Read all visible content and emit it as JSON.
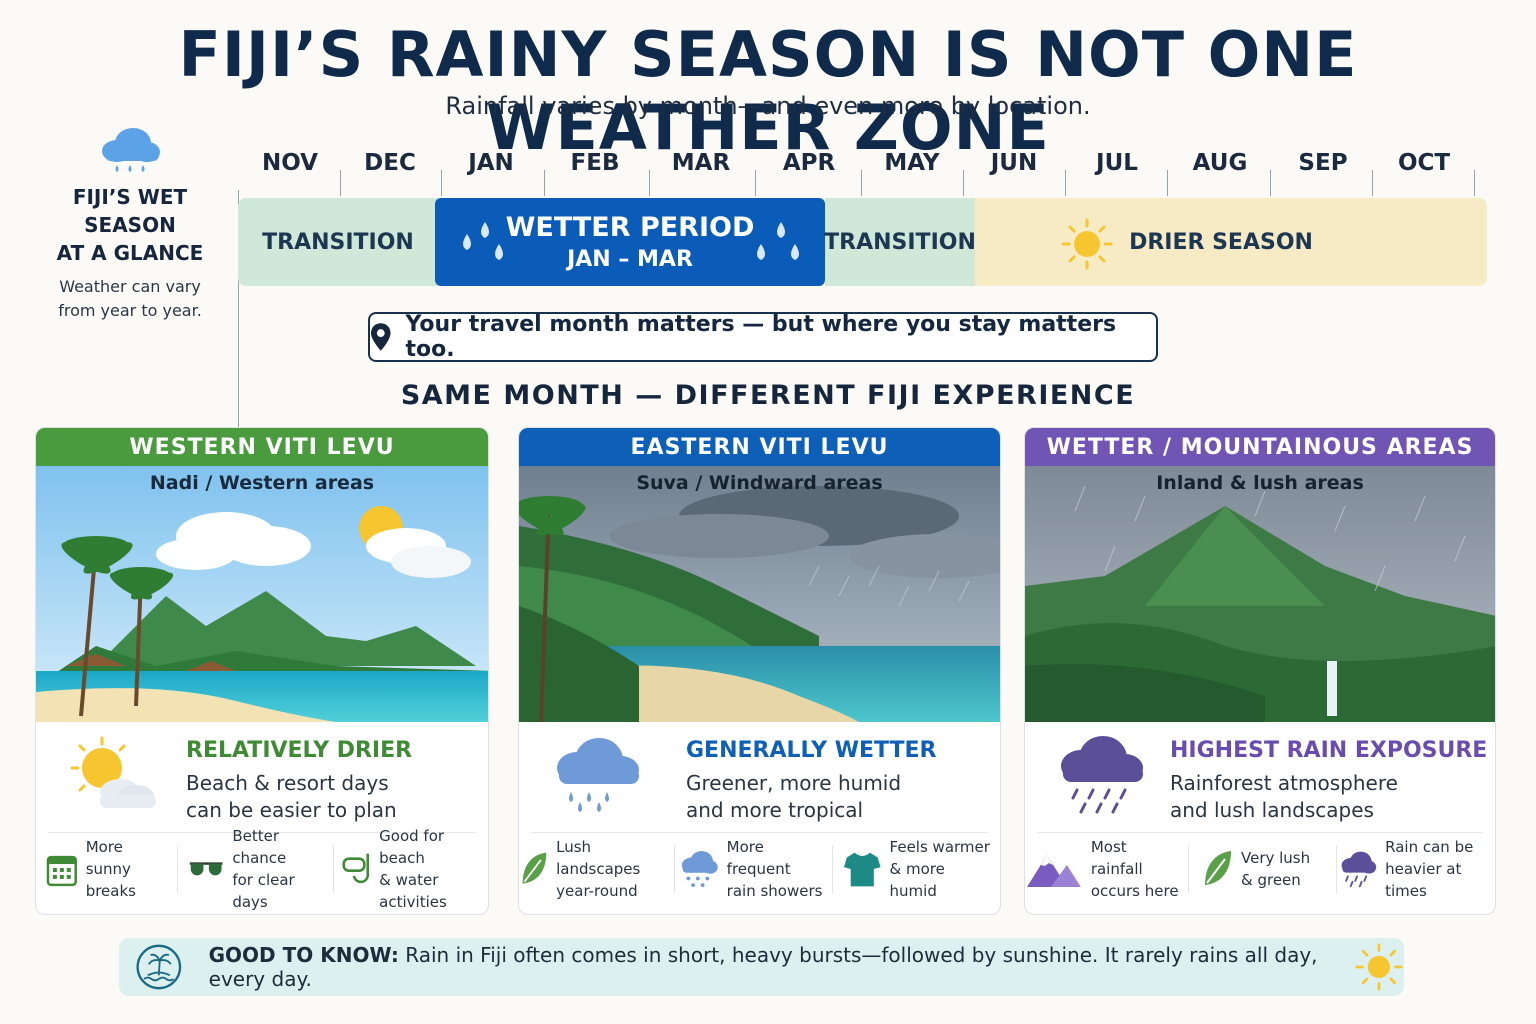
{
  "header": {
    "title": "FIJI’S RAINY SEASON IS NOT ONE WEATHER ZONE",
    "subtitle": "Rainfall varies by month—and even more by location."
  },
  "glance": {
    "heading_line1": "FIJI’S WET SEASON",
    "heading_line2": "AT A GLANCE",
    "note_line1": "Weather can vary",
    "note_line2": "from year to year.",
    "icon": "rain-cloud-icon"
  },
  "timeline": {
    "months": [
      "NOV",
      "DEC",
      "JAN",
      "FEB",
      "MAR",
      "APR",
      "MAY",
      "JUN",
      "JUL",
      "AUG",
      "SEP",
      "OCT"
    ],
    "bands": {
      "transition_1": "TRANSITION",
      "wetter_title": "WETTER PERIOD",
      "wetter_range": "JAN – MAR",
      "transition_2": "TRANSITION",
      "drier": "DRIER SEASON"
    },
    "colors": {
      "transition": "#cfe8d8",
      "wetter": "#0b5cb8",
      "drier": "#f6ebc4"
    }
  },
  "message": {
    "text": "Your travel month matters — but where you stay matters too.",
    "icon": "location-pin-icon"
  },
  "section_heading": "SAME MONTH — DIFFERENT FIJI EXPERIENCE",
  "cards": [
    {
      "title": "WESTERN VITI LEVU",
      "subtitle": "Nadi / Western areas",
      "heading": "RELATIVELY DRIER",
      "desc_line1": "Beach & resort days",
      "desc_line2": "can be easier to plan",
      "color": "#4a9a3e",
      "icon": "sun-cloud-icon",
      "features": [
        {
          "line1": "More sunny",
          "line2": "breaks",
          "icon": "calendar-icon"
        },
        {
          "line1": "Better chance",
          "line2": "for clear days",
          "icon": "sunglasses-icon"
        },
        {
          "line1": "Good for beach",
          "line2": "& water activities",
          "icon": "snorkel-icon"
        }
      ]
    },
    {
      "title": "EASTERN VITI LEVU",
      "subtitle": "Suva / Windward areas",
      "heading": "GENERALLY WETTER",
      "desc_line1": "Greener, more humid",
      "desc_line2": "and more tropical",
      "color": "#0d5fb8",
      "icon": "rain-cloud-icon",
      "features": [
        {
          "line1": "Lush landscapes",
          "line2": "year-round",
          "icon": "leaf-icon"
        },
        {
          "line1": "More frequent",
          "line2": "rain showers",
          "icon": "rain-cloud-icon"
        },
        {
          "line1": "Feels warmer",
          "line2": "& more humid",
          "icon": "tshirt-icon"
        }
      ]
    },
    {
      "title": "WETTER / MOUNTAINOUS AREAS",
      "subtitle": "Inland & lush areas",
      "heading": "HIGHEST RAIN EXPOSURE",
      "desc_line1": "Rainforest atmosphere",
      "desc_line2": "and lush landscapes",
      "color": "#7155b5",
      "icon": "heavy-rain-cloud-icon",
      "features": [
        {
          "line1": "Most rainfall",
          "line2": "occurs here",
          "icon": "mountain-icon"
        },
        {
          "line1": "Very lush",
          "line2": "& green",
          "icon": "leaf-icon"
        },
        {
          "line1": "Rain can be",
          "line2": "heavier at times",
          "icon": "heavy-rain-cloud-icon"
        }
      ]
    }
  ],
  "good_to_know": {
    "label": "GOOD TO KNOW:",
    "text": "Rain in Fiji often comes in short, heavy bursts—followed by sunshine. It rarely rains all day, every day.",
    "icon": "island-icon",
    "end_icon": "sun-icon"
  }
}
